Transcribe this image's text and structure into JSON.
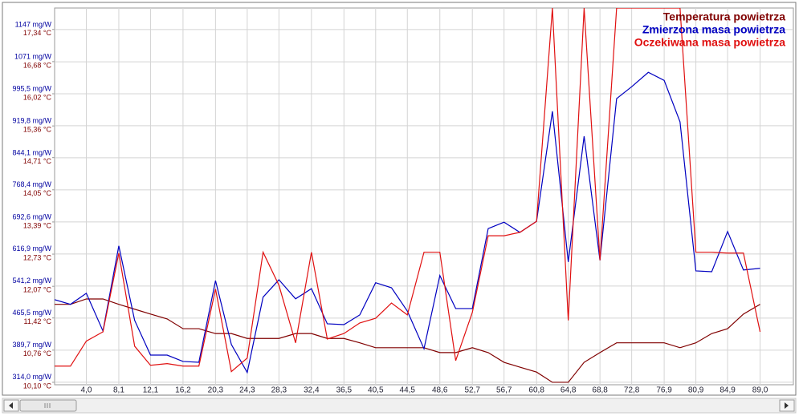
{
  "chart_data": {
    "type": "line",
    "legend": "top-right",
    "grid": true,
    "xlim": [
      0,
      93.2
    ],
    "ylim": [
      308,
      1198
    ],
    "y2lim": [
      10.05,
      17.78
    ],
    "xticks": [
      {
        "value": 4.0,
        "label": "4,0"
      },
      {
        "value": 8.1,
        "label": "8,1"
      },
      {
        "value": 12.1,
        "label": "12,1"
      },
      {
        "value": 16.2,
        "label": "16,2"
      },
      {
        "value": 20.3,
        "label": "20,3"
      },
      {
        "value": 24.3,
        "label": "24,3"
      },
      {
        "value": 28.3,
        "label": "28,3"
      },
      {
        "value": 32.4,
        "label": "32,4"
      },
      {
        "value": 36.5,
        "label": "36,5"
      },
      {
        "value": 40.5,
        "label": "40,5"
      },
      {
        "value": 44.5,
        "label": "44,5"
      },
      {
        "value": 48.6,
        "label": "48,6"
      },
      {
        "value": 52.7,
        "label": "52,7"
      },
      {
        "value": 56.7,
        "label": "56,7"
      },
      {
        "value": 60.8,
        "label": "60,8"
      },
      {
        "value": 64.8,
        "label": "64,8"
      },
      {
        "value": 68.8,
        "label": "68,8"
      },
      {
        "value": 72.8,
        "label": "72,8"
      },
      {
        "value": 76.9,
        "label": "76,9"
      },
      {
        "value": 80.9,
        "label": "80,9"
      },
      {
        "value": 84.9,
        "label": "84,9"
      },
      {
        "value": 89.0,
        "label": "89,0"
      }
    ],
    "yticks": [
      {
        "value": 314.0,
        "label": "314,0 mg/W"
      },
      {
        "value": 389.7,
        "label": "389,7 mg/W"
      },
      {
        "value": 465.5,
        "label": "465,5 mg/W"
      },
      {
        "value": 541.2,
        "label": "541,2 mg/W"
      },
      {
        "value": 616.9,
        "label": "616,9 mg/W"
      },
      {
        "value": 692.6,
        "label": "692,6 mg/W"
      },
      {
        "value": 768.4,
        "label": "768,4 mg/W"
      },
      {
        "value": 844.1,
        "label": "844,1 mg/W"
      },
      {
        "value": 919.8,
        "label": "919,8 mg/W"
      },
      {
        "value": 995.5,
        "label": "995,5 mg/W"
      },
      {
        "value": 1071,
        "label": "1071 mg/W"
      },
      {
        "value": 1147,
        "label": "1147 mg/W"
      }
    ],
    "y2ticks": [
      {
        "value": 10.1,
        "label": "10,10 °C"
      },
      {
        "value": 10.76,
        "label": "10,76 °C"
      },
      {
        "value": 11.42,
        "label": "11,42 °C"
      },
      {
        "value": 12.07,
        "label": "12,07 °C"
      },
      {
        "value": 12.73,
        "label": "12,73 °C"
      },
      {
        "value": 13.39,
        "label": "13,39 °C"
      },
      {
        "value": 14.05,
        "label": "14,05 °C"
      },
      {
        "value": 14.71,
        "label": "14,71 °C"
      },
      {
        "value": 15.36,
        "label": "15,36 °C"
      },
      {
        "value": 16.02,
        "label": "16,02 °C"
      },
      {
        "value": 16.68,
        "label": "16,68 °C"
      },
      {
        "value": 17.34,
        "label": "17,34 °C"
      }
    ],
    "x": [
      0,
      2.0,
      4.0,
      6.1,
      8.1,
      10.1,
      12.1,
      14.2,
      16.2,
      18.2,
      20.3,
      22.3,
      24.3,
      26.3,
      28.3,
      30.4,
      32.4,
      34.4,
      36.5,
      38.5,
      40.5,
      42.5,
      44.5,
      46.6,
      48.6,
      50.6,
      52.7,
      54.7,
      56.7,
      58.7,
      60.8,
      62.8,
      64.8,
      66.8,
      68.8,
      70.9,
      72.8,
      74.9,
      76.9,
      78.9,
      80.9,
      82.9,
      84.9,
      86.9,
      89.0
    ],
    "series": [
      {
        "name": "Temperatura powietrza",
        "color": "#800000",
        "axis": "y2",
        "values": [
          11.7,
          11.7,
          11.81,
          11.81,
          11.7,
          11.6,
          11.5,
          11.4,
          11.2,
          11.2,
          11.1,
          11.1,
          11.0,
          11.0,
          11.0,
          11.1,
          11.1,
          11.0,
          11.0,
          10.91,
          10.81,
          10.81,
          10.81,
          10.81,
          10.71,
          10.71,
          10.81,
          10.71,
          10.51,
          10.41,
          10.31,
          10.1,
          10.1,
          10.51,
          10.71,
          10.91,
          10.91,
          10.91,
          10.91,
          10.81,
          10.91,
          11.1,
          11.2,
          11.5,
          11.7
        ]
      },
      {
        "name": "Zmierzona masa powietrza",
        "color": "#0000c0",
        "values": [
          509,
          498,
          524,
          435,
          636,
          460,
          378,
          378,
          363,
          361,
          554,
          403,
          337,
          515,
          556,
          511,
          535,
          452,
          450,
          473,
          549,
          537,
          482,
          393,
          566,
          488,
          488,
          677,
          692,
          668,
          694,
          954,
          598,
          895,
          602,
          984,
          1012,
          1046,
          1027,
          929,
          577,
          575,
          670,
          579,
          583
        ]
      },
      {
        "name": "Oczekiwana masa powietrza",
        "color": "#e01010",
        "values": [
          352,
          352,
          411,
          433,
          619,
          399,
          354,
          358,
          352,
          352,
          534,
          339,
          371,
          621,
          543,
          407,
          621,
          416,
          429,
          454,
          465,
          501,
          473,
          621,
          621,
          365,
          479,
          660,
          660,
          668,
          694,
          1198,
          460,
          1198,
          602,
          1198,
          1198,
          1198,
          1198,
          1198,
          621,
          621,
          619,
          619,
          433
        ]
      }
    ]
  }
}
